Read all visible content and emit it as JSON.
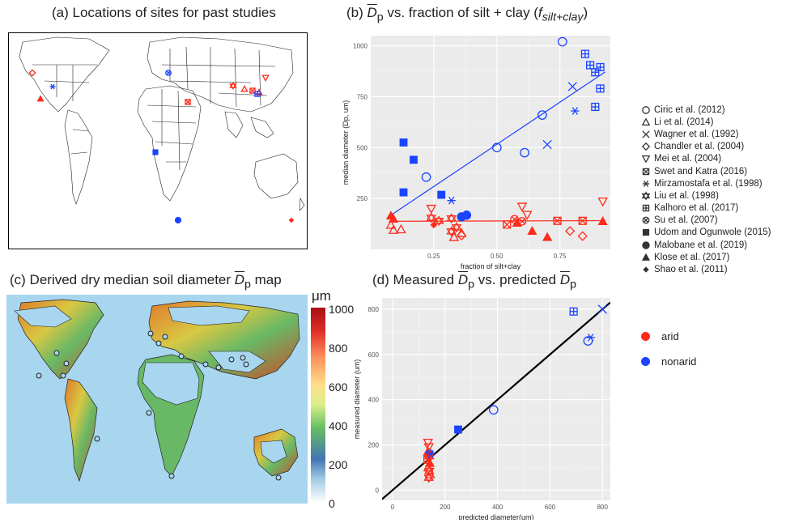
{
  "titles": {
    "a": "(a) Locations of sites for past studies",
    "b_prefix": "(b) ",
    "b_symbol": "D",
    "b_sub": "p",
    "b_mid": " vs. fraction of silt + clay (",
    "b_f": "f",
    "b_fsub": "silt+clay",
    "b_end": ")",
    "c_prefix": "(c) Derived dry median soil diameter ",
    "c_symbol": "D",
    "c_sub": "p",
    "c_end": " map",
    "d_prefix": "(d) Measured ",
    "d_sym1": "D",
    "d_sub1": "p",
    "d_mid": " vs. predicted ",
    "d_sym2": "D",
    "d_sub2": "p"
  },
  "colorbar": {
    "unit": "μm",
    "ticks": [
      "1000",
      "800",
      "600",
      "400",
      "200",
      "0"
    ]
  },
  "colors": {
    "arid": "#ff2a1a",
    "nonarid": "#1a44ff",
    "panel_bg": "#ebebeb",
    "ocean": "#a9d6ef"
  },
  "legend": [
    {
      "marker": "circle",
      "label": "Ciric et al. (2012)"
    },
    {
      "marker": "triangle",
      "label": "Li et al. (2014)"
    },
    {
      "marker": "cross",
      "label": "Wagner et al. (1992)"
    },
    {
      "marker": "diamond",
      "label": "Chandler et al. (2004)"
    },
    {
      "marker": "triangle-down",
      "label": "Mei et al. (2004)"
    },
    {
      "marker": "square-x",
      "label": "Swet and Katra (2016)"
    },
    {
      "marker": "asterisk",
      "label": "Mirzamostafa et al. (1998)"
    },
    {
      "marker": "star-david",
      "label": "Liu et al. (1998)"
    },
    {
      "marker": "square-plus",
      "label": "Kalhoro et al. (2017)"
    },
    {
      "marker": "circle-x",
      "label": "Su et al. (2007)"
    },
    {
      "marker": "filled-square",
      "label": "Udom and Ogunwole (2015)"
    },
    {
      "marker": "filled-circle",
      "label": "Malobane et al. (2019)"
    },
    {
      "marker": "filled-triangle",
      "label": "Klose et al. (2017)"
    },
    {
      "marker": "filled-diamond",
      "label": "Shao et al. (2011)"
    }
  ],
  "arid_legend": [
    {
      "label": "arid",
      "color": "#ff2a1a"
    },
    {
      "label": "nonarid",
      "color": "#1a44ff"
    }
  ],
  "chart_data": [
    {
      "id": "b",
      "type": "scatter",
      "xlabel": "fraction of silt+clay",
      "ylabel": "median diameter (Dp, um)",
      "xlim": [
        0.0,
        0.95
      ],
      "ylim": [
        0,
        1050
      ],
      "xticks": [
        0.25,
        0.5,
        0.75
      ],
      "xtick_labels": [
        "0.25",
        "0.50",
        "0.75"
      ],
      "yticks": [
        250,
        500,
        750,
        1000
      ],
      "ytick_labels": [
        "250",
        "500",
        "750",
        "1000"
      ],
      "grid": true,
      "fit_lines": [
        {
          "group": "nonarid",
          "x": [
            0.08,
            0.93
          ],
          "y": [
            168,
            872
          ]
        },
        {
          "group": "arid",
          "x": [
            0.08,
            0.93
          ],
          "y": [
            138,
            141
          ]
        }
      ],
      "points": [
        {
          "x": 0.22,
          "y": 355,
          "m": "circle",
          "g": "nonarid"
        },
        {
          "x": 0.5,
          "y": 500,
          "m": "circle",
          "g": "nonarid"
        },
        {
          "x": 0.61,
          "y": 475,
          "m": "circle",
          "g": "nonarid"
        },
        {
          "x": 0.68,
          "y": 660,
          "m": "circle",
          "g": "nonarid"
        },
        {
          "x": 0.76,
          "y": 1020,
          "m": "circle",
          "g": "nonarid"
        },
        {
          "x": 0.7,
          "y": 515,
          "m": "cross",
          "g": "nonarid"
        },
        {
          "x": 0.8,
          "y": 800,
          "m": "cross",
          "g": "nonarid"
        },
        {
          "x": 0.81,
          "y": 680,
          "m": "asterisk",
          "g": "nonarid"
        },
        {
          "x": 0.32,
          "y": 240,
          "m": "asterisk",
          "g": "nonarid"
        },
        {
          "x": 0.85,
          "y": 960,
          "m": "square-plus",
          "g": "nonarid"
        },
        {
          "x": 0.87,
          "y": 905,
          "m": "square-plus",
          "g": "nonarid"
        },
        {
          "x": 0.89,
          "y": 870,
          "m": "square-plus",
          "g": "nonarid"
        },
        {
          "x": 0.91,
          "y": 895,
          "m": "square-plus",
          "g": "nonarid"
        },
        {
          "x": 0.91,
          "y": 790,
          "m": "square-plus",
          "g": "nonarid"
        },
        {
          "x": 0.89,
          "y": 700,
          "m": "square-plus",
          "g": "nonarid"
        },
        {
          "x": 0.13,
          "y": 525,
          "m": "filled-square",
          "g": "nonarid"
        },
        {
          "x": 0.17,
          "y": 440,
          "m": "filled-square",
          "g": "nonarid"
        },
        {
          "x": 0.13,
          "y": 280,
          "m": "filled-square",
          "g": "nonarid"
        },
        {
          "x": 0.28,
          "y": 268,
          "m": "filled-square",
          "g": "nonarid"
        },
        {
          "x": 0.36,
          "y": 160,
          "m": "filled-circle",
          "g": "nonarid"
        },
        {
          "x": 0.38,
          "y": 168,
          "m": "filled-circle",
          "g": "nonarid"
        },
        {
          "x": 0.08,
          "y": 120,
          "m": "triangle",
          "g": "arid"
        },
        {
          "x": 0.09,
          "y": 95,
          "m": "triangle",
          "g": "arid"
        },
        {
          "x": 0.12,
          "y": 98,
          "m": "triangle",
          "g": "arid"
        },
        {
          "x": 0.33,
          "y": 60,
          "m": "triangle",
          "g": "arid"
        },
        {
          "x": 0.36,
          "y": 80,
          "m": "triangle",
          "g": "arid"
        },
        {
          "x": 0.24,
          "y": 200,
          "m": "triangle-down",
          "g": "arid"
        },
        {
          "x": 0.6,
          "y": 210,
          "m": "triangle-down",
          "g": "arid"
        },
        {
          "x": 0.62,
          "y": 170,
          "m": "triangle-down",
          "g": "arid"
        },
        {
          "x": 0.92,
          "y": 235,
          "m": "triangle-down",
          "g": "arid"
        },
        {
          "x": 0.36,
          "y": 68,
          "m": "diamond",
          "g": "arid"
        },
        {
          "x": 0.79,
          "y": 90,
          "m": "diamond",
          "g": "arid"
        },
        {
          "x": 0.84,
          "y": 65,
          "m": "diamond",
          "g": "arid"
        },
        {
          "x": 0.54,
          "y": 122,
          "m": "square-x",
          "g": "arid"
        },
        {
          "x": 0.74,
          "y": 140,
          "m": "square-x",
          "g": "arid"
        },
        {
          "x": 0.84,
          "y": 140,
          "m": "square-x",
          "g": "arid"
        },
        {
          "x": 0.24,
          "y": 155,
          "m": "star-david",
          "g": "arid"
        },
        {
          "x": 0.27,
          "y": 140,
          "m": "star-david",
          "g": "arid"
        },
        {
          "x": 0.32,
          "y": 152,
          "m": "star-david",
          "g": "arid"
        },
        {
          "x": 0.32,
          "y": 88,
          "m": "star-david",
          "g": "arid"
        },
        {
          "x": 0.34,
          "y": 108,
          "m": "star-david",
          "g": "arid"
        },
        {
          "x": 0.57,
          "y": 148,
          "m": "circle-x",
          "g": "arid"
        },
        {
          "x": 0.6,
          "y": 138,
          "m": "circle-x",
          "g": "arid"
        },
        {
          "x": 0.08,
          "y": 165,
          "m": "filled-triangle",
          "g": "arid"
        },
        {
          "x": 0.09,
          "y": 150,
          "m": "filled-triangle",
          "g": "arid"
        },
        {
          "x": 0.58,
          "y": 130,
          "m": "filled-triangle",
          "g": "arid"
        },
        {
          "x": 0.64,
          "y": 90,
          "m": "filled-triangle",
          "g": "arid"
        },
        {
          "x": 0.7,
          "y": 60,
          "m": "filled-triangle",
          "g": "arid"
        },
        {
          "x": 0.92,
          "y": 138,
          "m": "filled-triangle",
          "g": "arid"
        },
        {
          "x": 0.25,
          "y": 120,
          "m": "filled-diamond",
          "g": "arid"
        }
      ]
    },
    {
      "id": "d",
      "type": "scatter",
      "xlabel": "predicted diameter(um)",
      "ylabel": "measured diameter (um)",
      "xlim": [
        -40,
        830
      ],
      "ylim": [
        -45,
        850
      ],
      "xticks": [
        0,
        200,
        400,
        600,
        800
      ],
      "xtick_labels": [
        "0",
        "200",
        "400",
        "600",
        "800"
      ],
      "yticks": [
        0,
        200,
        400,
        600,
        800
      ],
      "ytick_labels": [
        "0",
        "200",
        "400",
        "600",
        "800"
      ],
      "grid": true,
      "fit_lines": [
        {
          "group": "one-to-one",
          "x": [
            -40,
            830
          ],
          "y": [
            -40,
            830
          ]
        }
      ],
      "points": [
        {
          "x": 385,
          "y": 355,
          "m": "circle",
          "g": "nonarid"
        },
        {
          "x": 745,
          "y": 660,
          "m": "circle",
          "g": "nonarid"
        },
        {
          "x": 800,
          "y": 800,
          "m": "cross",
          "g": "nonarid"
        },
        {
          "x": 755,
          "y": 675,
          "m": "asterisk",
          "g": "nonarid"
        },
        {
          "x": 690,
          "y": 790,
          "m": "square-plus",
          "g": "nonarid"
        },
        {
          "x": 250,
          "y": 268,
          "m": "filled-square",
          "g": "nonarid"
        },
        {
          "x": 140,
          "y": 160,
          "m": "filled-circle",
          "g": "nonarid"
        },
        {
          "x": 135,
          "y": 210,
          "m": "triangle-down",
          "g": "arid"
        },
        {
          "x": 138,
          "y": 190,
          "m": "triangle-down",
          "g": "arid"
        },
        {
          "x": 135,
          "y": 170,
          "m": "triangle",
          "g": "arid"
        },
        {
          "x": 140,
          "y": 150,
          "m": "star-david",
          "g": "arid"
        },
        {
          "x": 133,
          "y": 135,
          "m": "square-x",
          "g": "arid"
        },
        {
          "x": 142,
          "y": 120,
          "m": "filled-triangle",
          "g": "arid"
        },
        {
          "x": 136,
          "y": 100,
          "m": "triangle",
          "g": "arid"
        },
        {
          "x": 140,
          "y": 85,
          "m": "star-david",
          "g": "arid"
        },
        {
          "x": 143,
          "y": 70,
          "m": "triangle",
          "g": "arid"
        },
        {
          "x": 138,
          "y": 55,
          "m": "star-david",
          "g": "arid"
        },
        {
          "x": 145,
          "y": 160,
          "m": "asterisk",
          "g": "nonarid"
        }
      ]
    }
  ]
}
